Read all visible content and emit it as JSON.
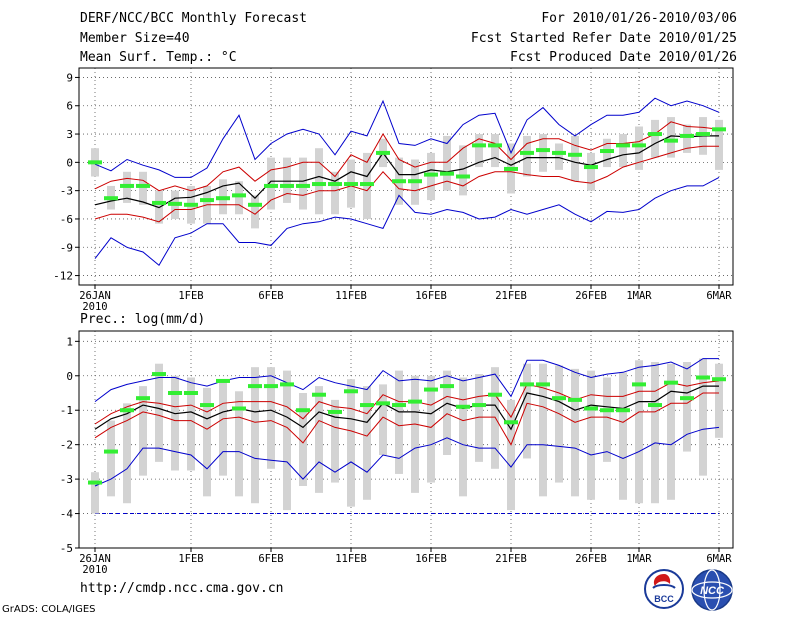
{
  "header": {
    "title": "DERF/NCC/BCC Monthly Forecast",
    "member_size": "Member Size=40",
    "variable": "Mean Surf. Temp.: °C",
    "period": "For 2010/01/26-2010/03/06",
    "fcst_started": "Fcst Started Refer Date 2010/01/25",
    "fcst_produced": "Fcst Produced Date 2010/01/26"
  },
  "footer": {
    "url": "http://cmdp.ncc.cma.gov.cn",
    "credit": "GrADS: COLA/IGES",
    "logo_bcc_text": "BCC",
    "logo_ncc_text": "NCC"
  },
  "colors": {
    "box": "#d3d3d3",
    "median": "#33ee33",
    "envelope": "#0000cc",
    "spread": "#cc0000",
    "mean": "#000000",
    "grid": "#555555"
  },
  "chart_data": [
    {
      "type": "line",
      "title": "",
      "x_tick_labels": [
        "26JAN",
        "1FEB",
        "6FEB",
        "11FEB",
        "16FEB",
        "21FEB",
        "26FEB",
        "1MAR",
        "6MAR"
      ],
      "x_tick_days": [
        1,
        7,
        12,
        17,
        22,
        27,
        32,
        35,
        40
      ],
      "x_sublabel": "2010",
      "ylim": [
        -13,
        10
      ],
      "y_ticks": [
        -12,
        -9,
        -6,
        -3,
        0,
        3,
        6,
        9
      ],
      "days": 40,
      "series": [
        {
          "name": "max",
          "values": [
            -10.2,
            -8.0,
            -9.0,
            -9.5,
            -10.9,
            -8.0,
            -7.5,
            -6.5,
            -6.5,
            -8.5,
            -8.5,
            -8.8,
            -7.0,
            -6.5,
            -6.3,
            -5.8,
            -6.0,
            -6.5,
            -7.0,
            -3.5,
            -5.3,
            -5.5,
            -5.0,
            -5.3,
            -6.0,
            -5.8,
            -5.0,
            -5.5,
            -5.0,
            -4.5,
            -5.5,
            -6.3,
            -5.2,
            -5.3,
            -5.0,
            -3.8,
            -3.0,
            -2.5,
            -2.5,
            -1.6
          ]
        },
        {
          "name": "min",
          "values": [
            -0.2,
            -0.9,
            0.3,
            -0.3,
            -0.8,
            -1.6,
            -1.6,
            -0.6,
            2.5,
            5.0,
            0.3,
            2.0,
            3.0,
            3.5,
            3.0,
            0.8,
            3.3,
            2.8,
            6.5,
            2.0,
            1.8,
            2.5,
            2.0,
            4.0,
            5.0,
            5.2,
            1.0,
            4.5,
            5.8,
            4.0,
            2.8,
            4.0,
            5.0,
            5.0,
            5.3,
            6.8,
            6.0,
            6.5,
            6.0,
            5.3
          ]
        },
        {
          "name": "p_high",
          "values": [
            -2.8,
            -2.0,
            -1.7,
            -1.9,
            -3.0,
            -2.5,
            -3.0,
            -2.5,
            -1.0,
            -0.5,
            -2.0,
            -0.8,
            -0.5,
            0.0,
            0.0,
            -1.5,
            0.8,
            0.0,
            3.0,
            0.3,
            -0.5,
            0.0,
            0.0,
            1.5,
            2.5,
            2.0,
            0.3,
            2.0,
            2.5,
            2.5,
            1.8,
            1.3,
            2.0,
            2.0,
            2.2,
            3.0,
            4.3,
            3.8,
            3.7,
            3.5
          ]
        },
        {
          "name": "p_low",
          "values": [
            -6.0,
            -5.5,
            -5.5,
            -5.8,
            -6.3,
            -5.0,
            -5.0,
            -4.5,
            -4.5,
            -4.5,
            -5.5,
            -4.0,
            -3.3,
            -3.5,
            -3.0,
            -3.0,
            -2.5,
            -3.0,
            -1.0,
            -2.8,
            -3.0,
            -2.5,
            -2.0,
            -2.5,
            -1.5,
            -1.0,
            -1.0,
            -1.3,
            -1.5,
            -1.5,
            -2.0,
            -2.2,
            -1.5,
            -0.5,
            0.0,
            0.5,
            1.0,
            1.5,
            1.7,
            1.7
          ]
        },
        {
          "name": "mean",
          "values": [
            -4.5,
            -4.1,
            -3.8,
            -4.2,
            -4.8,
            -3.8,
            -3.7,
            -3.2,
            -2.5,
            -2.2,
            -3.8,
            -2.0,
            -2.0,
            -2.0,
            -1.5,
            -2.0,
            -1.0,
            -1.5,
            1.0,
            -1.3,
            -1.3,
            -0.8,
            -1.0,
            -0.7,
            0.0,
            0.5,
            -0.3,
            0.5,
            0.5,
            0.5,
            0.0,
            -0.3,
            0.3,
            0.8,
            1.0,
            2.0,
            2.8,
            2.7,
            2.8,
            2.8
          ]
        },
        {
          "name": "median",
          "values": [
            0.0,
            -3.8,
            -2.5,
            -2.5,
            -4.3,
            -4.4,
            -4.5,
            -4.0,
            -3.8,
            -3.5,
            -4.5,
            -2.5,
            -2.5,
            -2.5,
            -2.3,
            -2.3,
            -2.3,
            -2.3,
            1.0,
            -2.0,
            -2.0,
            -1.3,
            -1.2,
            -1.5,
            1.8,
            1.8,
            -0.7,
            1.0,
            1.3,
            1.0,
            0.8,
            -0.5,
            1.2,
            1.8,
            1.8,
            3.0,
            2.3,
            2.8,
            3.0,
            3.5
          ]
        },
        {
          "name": "box_low",
          "values": [
            -1.5,
            -5.0,
            -4.3,
            -4.5,
            -6.5,
            -6.0,
            -6.5,
            -6.5,
            -5.5,
            -5.5,
            -7.0,
            -5.0,
            -4.3,
            -5.0,
            -5.5,
            -5.5,
            -4.8,
            -6.0,
            -0.5,
            -4.5,
            -4.5,
            -4.0,
            -3.0,
            -3.5,
            -0.5,
            -0.5,
            -3.3,
            -1.5,
            -1.0,
            -0.8,
            -2.0,
            -3.0,
            -0.5,
            -0.5,
            -0.8,
            0.5,
            0.5,
            1.0,
            0.8,
            -0.8
          ]
        },
        {
          "name": "box_high",
          "values": [
            1.5,
            -2.5,
            -1.0,
            -1.0,
            -3.0,
            -3.0,
            -2.5,
            -2.5,
            -1.8,
            -2.0,
            -3.5,
            0.5,
            0.5,
            0.5,
            1.5,
            -1.0,
            0.3,
            1.0,
            2.5,
            0.5,
            0.3,
            1.0,
            2.8,
            1.8,
            3.0,
            3.0,
            2.0,
            2.8,
            3.0,
            2.0,
            2.8,
            1.0,
            2.5,
            3.0,
            3.8,
            4.5,
            4.8,
            4.0,
            4.8,
            4.5
          ]
        }
      ]
    },
    {
      "type": "line",
      "title": "Prec.: log(mm/d)",
      "x_tick_labels": [
        "26JAN",
        "1FEB",
        "6FEB",
        "11FEB",
        "16FEB",
        "21FEB",
        "26FEB",
        "1MAR",
        "6MAR"
      ],
      "x_tick_days": [
        1,
        7,
        12,
        17,
        22,
        27,
        32,
        35,
        40
      ],
      "x_sublabel": "2010",
      "ylim": [
        -5,
        1.3
      ],
      "y_ticks": [
        -5,
        -4,
        -3,
        -2,
        -1,
        0,
        1
      ],
      "days": 40,
      "series": [
        {
          "name": "max",
          "values": [
            -0.75,
            -0.4,
            -0.25,
            -0.15,
            -0.05,
            -0.05,
            -0.2,
            -0.3,
            -0.15,
            -0.05,
            -0.05,
            0.0,
            -0.2,
            -0.4,
            -0.05,
            -0.2,
            -0.3,
            -0.4,
            0.15,
            -0.15,
            -0.1,
            -0.15,
            0.0,
            -0.15,
            -0.05,
            0.05,
            -0.6,
            0.45,
            0.45,
            0.3,
            0.1,
            -0.05,
            0.05,
            0.1,
            0.25,
            0.3,
            0.4,
            0.2,
            0.5,
            0.5
          ]
        },
        {
          "name": "min",
          "values": [
            -3.2,
            -3.0,
            -2.7,
            -2.1,
            -2.1,
            -2.2,
            -2.3,
            -2.7,
            -2.2,
            -2.2,
            -2.4,
            -2.45,
            -2.5,
            -3.0,
            -2.5,
            -2.8,
            -2.5,
            -2.8,
            -2.3,
            -2.4,
            -2.1,
            -2.0,
            -1.8,
            -2.0,
            -2.1,
            -2.1,
            -2.65,
            -2.0,
            -2.0,
            -2.05,
            -2.1,
            -2.3,
            -2.2,
            -2.4,
            -2.2,
            -1.95,
            -2.0,
            -1.7,
            -1.55,
            -1.5
          ]
        },
        {
          "name": "p_high",
          "values": [
            -1.4,
            -1.1,
            -0.9,
            -0.75,
            -0.8,
            -0.9,
            -0.85,
            -1.05,
            -0.8,
            -0.75,
            -0.75,
            -0.75,
            -0.9,
            -1.25,
            -0.75,
            -0.9,
            -0.95,
            -1.1,
            -0.55,
            -0.75,
            -0.75,
            -0.85,
            -0.6,
            -0.7,
            -0.6,
            -0.55,
            -1.2,
            -0.25,
            -0.35,
            -0.5,
            -0.7,
            -0.55,
            -0.6,
            -0.6,
            -0.45,
            -0.45,
            -0.2,
            -0.3,
            -0.2,
            -0.15
          ]
        },
        {
          "name": "p_low",
          "values": [
            -1.8,
            -1.5,
            -1.3,
            -1.05,
            -1.15,
            -1.3,
            -1.3,
            -1.55,
            -1.25,
            -1.2,
            -1.35,
            -1.3,
            -1.5,
            -1.95,
            -1.3,
            -1.5,
            -1.6,
            -1.75,
            -1.2,
            -1.45,
            -1.4,
            -1.5,
            -1.1,
            -1.3,
            -1.2,
            -1.2,
            -2.0,
            -0.8,
            -0.9,
            -1.1,
            -1.35,
            -1.2,
            -1.2,
            -1.35,
            -1.05,
            -1.05,
            -0.8,
            -0.8,
            -0.5,
            -0.5
          ]
        },
        {
          "name": "mean",
          "values": [
            -1.55,
            -1.25,
            -1.1,
            -0.85,
            -0.95,
            -1.1,
            -1.05,
            -1.25,
            -1.05,
            -0.95,
            -1.05,
            -1.0,
            -1.2,
            -1.5,
            -1.05,
            -1.2,
            -1.25,
            -1.35,
            -0.8,
            -1.05,
            -1.05,
            -1.1,
            -0.8,
            -0.95,
            -0.85,
            -0.85,
            -1.55,
            -0.5,
            -0.6,
            -0.75,
            -1.0,
            -0.85,
            -0.9,
            -0.95,
            -0.75,
            -0.75,
            -0.45,
            -0.5,
            -0.3,
            -0.3
          ]
        },
        {
          "name": "median",
          "values": [
            -3.1,
            -2.2,
            -1.0,
            -0.65,
            0.05,
            -0.5,
            -0.5,
            -0.85,
            -0.15,
            -0.95,
            -0.3,
            -0.3,
            -0.25,
            -1.0,
            -0.55,
            -1.05,
            -0.45,
            -0.85,
            -0.8,
            -0.85,
            -0.75,
            -0.4,
            -0.3,
            -0.9,
            -0.85,
            -0.55,
            -1.35,
            -0.25,
            -0.25,
            -0.65,
            -0.7,
            -0.95,
            -1.0,
            -1.0,
            -0.25,
            -0.85,
            -0.2,
            -0.65,
            -0.05,
            -0.1
          ]
        },
        {
          "name": "box_low",
          "values": [
            -4.0,
            -3.5,
            -3.7,
            -2.9,
            -2.5,
            -2.75,
            -2.75,
            -3.5,
            -2.9,
            -3.5,
            -3.7,
            -2.7,
            -3.9,
            -3.2,
            -3.4,
            -3.1,
            -3.8,
            -3.6,
            -2.3,
            -2.85,
            -3.4,
            -3.1,
            -2.3,
            -3.5,
            -2.5,
            -2.7,
            -3.9,
            -2.4,
            -3.5,
            -3.1,
            -3.5,
            -3.6,
            -2.5,
            -3.6,
            -3.7,
            -3.7,
            -3.6,
            -2.2,
            -2.9,
            -1.8
          ]
        },
        {
          "name": "box_high",
          "values": [
            -2.8,
            -1.3,
            -0.8,
            -0.3,
            0.35,
            0.0,
            -0.05,
            -0.35,
            -0.1,
            -0.45,
            0.25,
            0.25,
            0.15,
            -0.5,
            -0.3,
            -0.7,
            -0.1,
            -0.3,
            -0.25,
            0.15,
            0.0,
            0.0,
            0.15,
            -0.05,
            0.05,
            0.25,
            -0.7,
            0.35,
            0.35,
            0.3,
            0.2,
            0.15,
            -0.05,
            0.1,
            0.45,
            0.4,
            0.35,
            0.4,
            0.5,
            0.35
          ]
        }
      ]
    }
  ]
}
